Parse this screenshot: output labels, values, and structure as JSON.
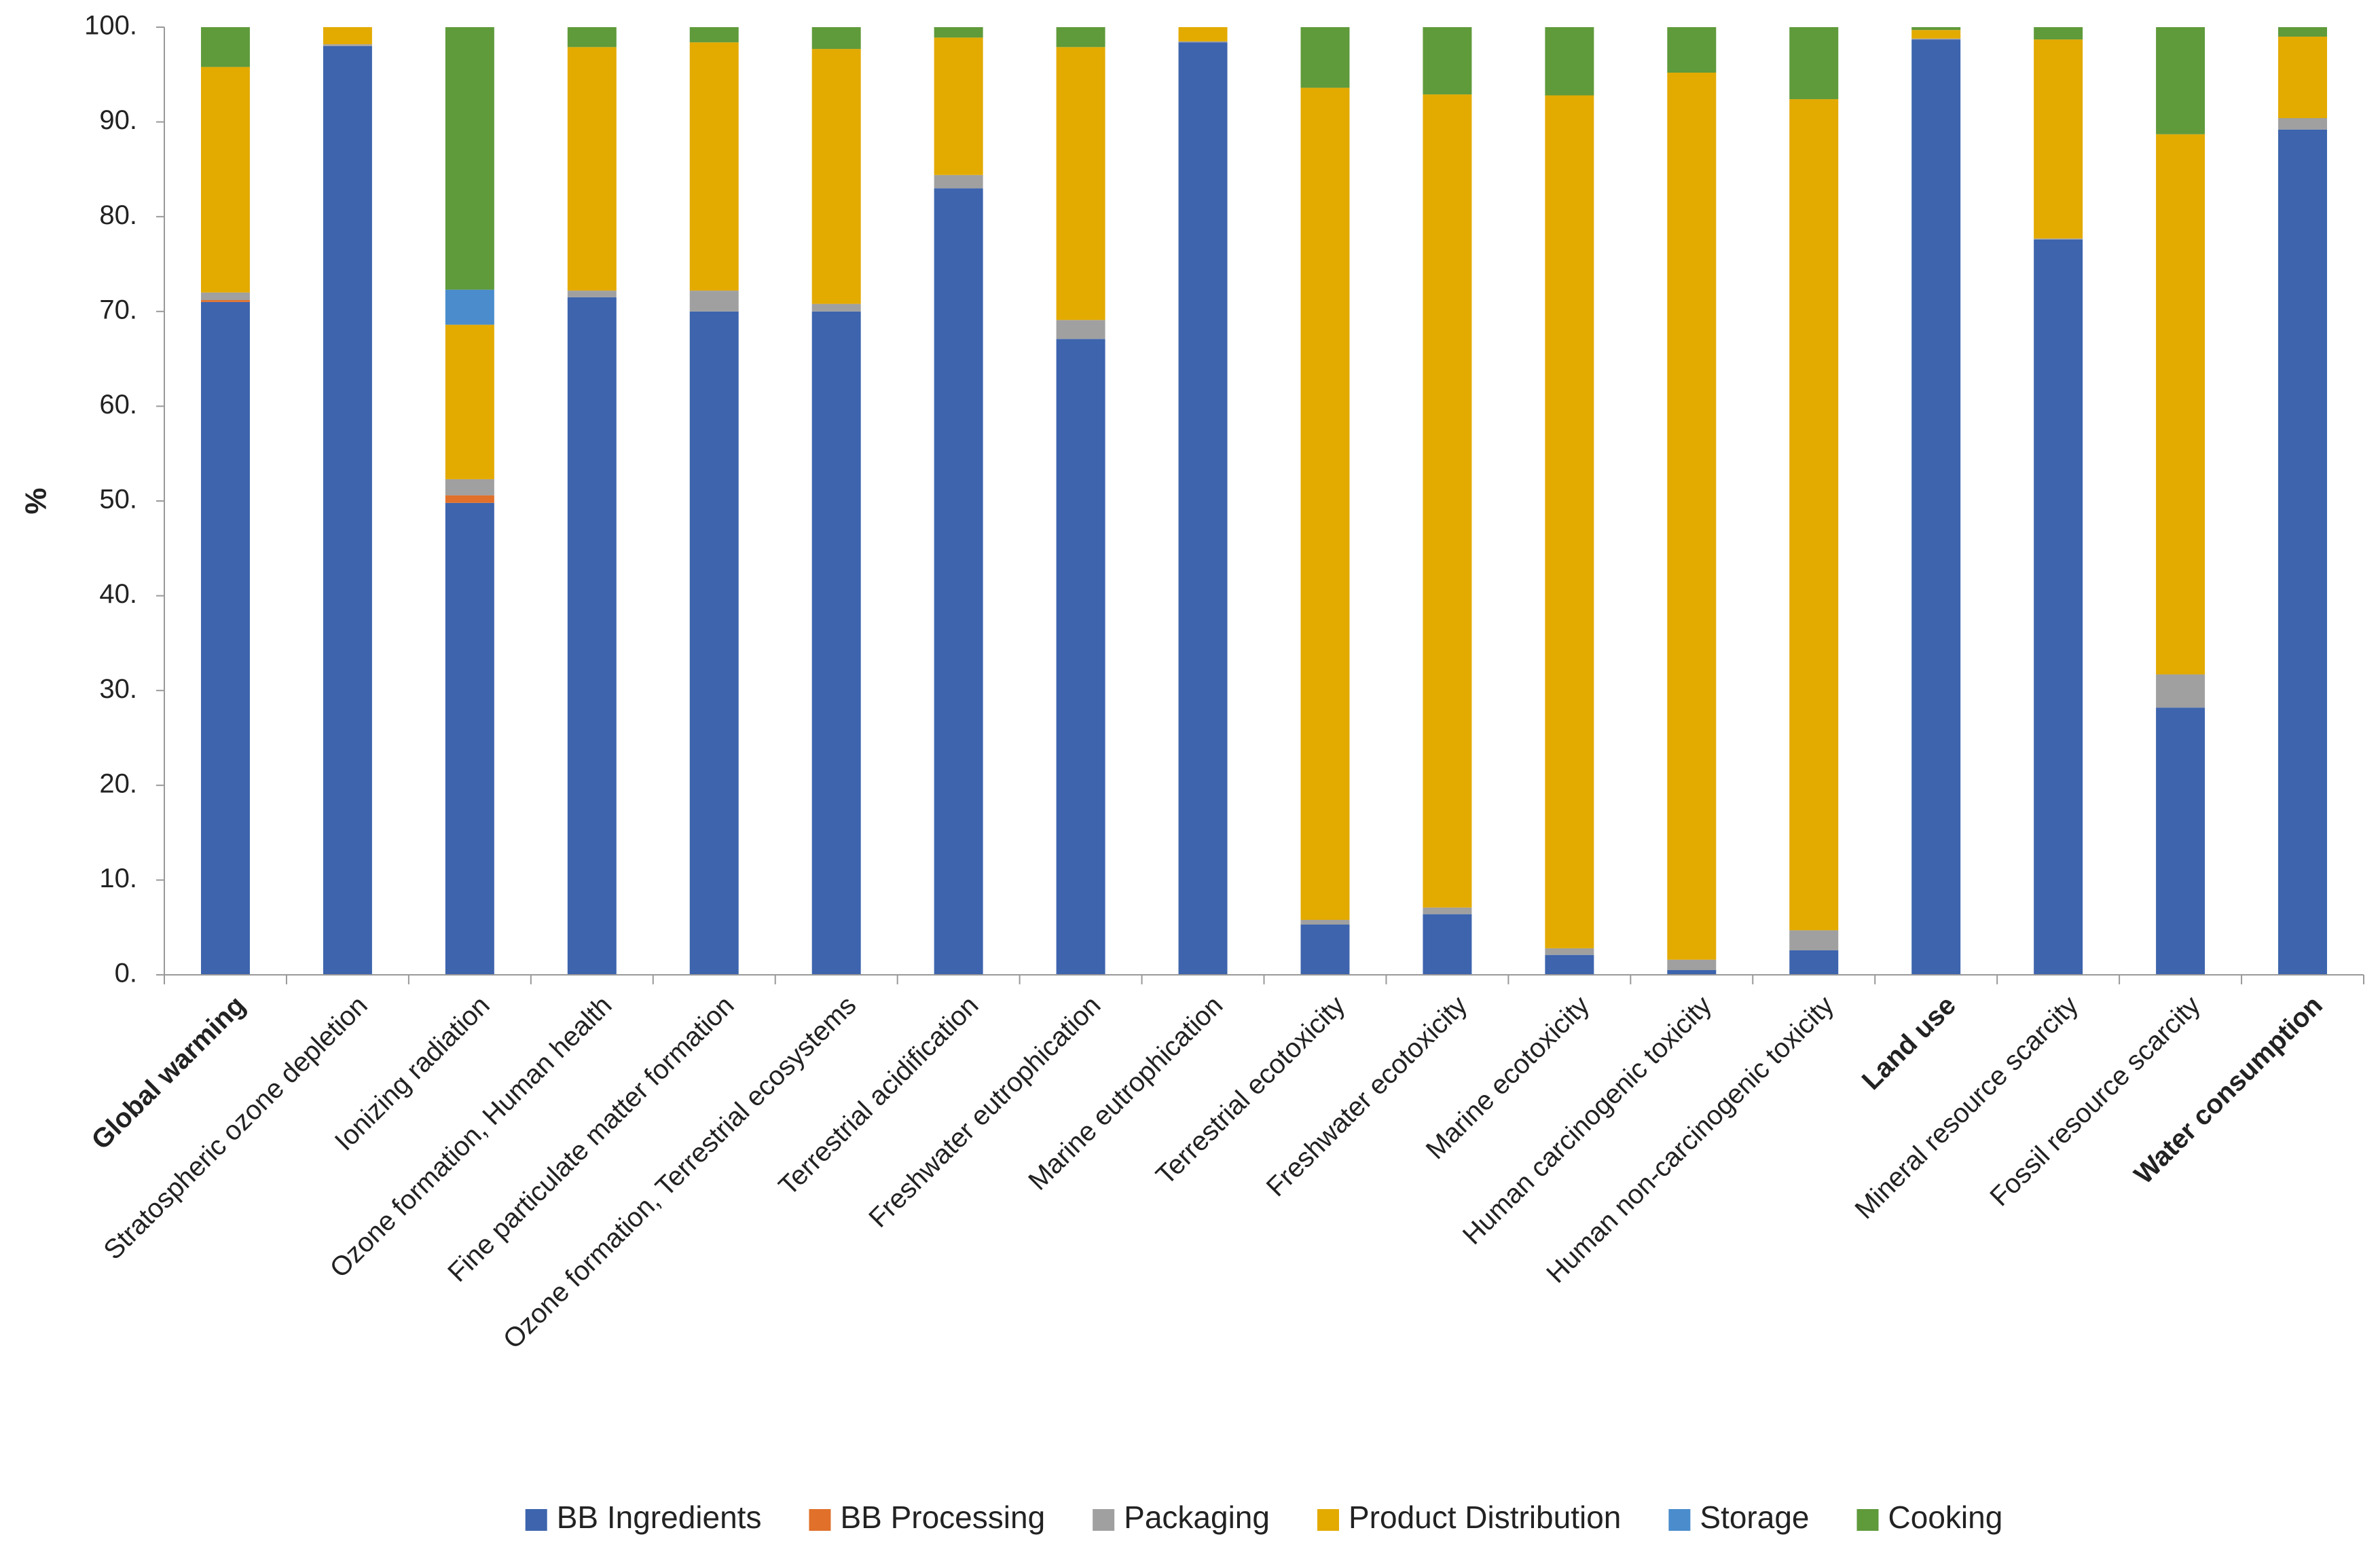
{
  "chart_data": {
    "type": "stacked_bar",
    "y_label": "%",
    "categories": [
      "Global warming",
      "Stratospheric ozone depletion",
      "Ionizing radiation",
      "Ozone formation, Human health",
      "Fine particulate matter formation",
      "Ozone formation, Terrestrial ecosystems",
      "Terrestrial acidification",
      "Freshwater eutrophication",
      "Marine eutrophication",
      "Terrestrial ecotoxicity",
      "Freshwater ecotoxicity",
      "Marine ecotoxicity",
      "Human carcinogenic toxicity",
      "Human non-carcinogenic toxicity",
      "Land use",
      "Mineral resource scarcity",
      "Fossil resource scarcity",
      "Water consumption"
    ],
    "bold_categories": [
      0,
      14,
      17
    ],
    "series": [
      {
        "name": "BB Ingredients",
        "color": "#3d64ad",
        "values": [
          71,
          98,
          49.8,
          71.5,
          70,
          70,
          83,
          67.1,
          98.4,
          5.3,
          6.4,
          2.1,
          0.5,
          2.6,
          98.7,
          77.6,
          28.2,
          89.2
        ]
      },
      {
        "name": "BB Processing",
        "color": "#e0702a",
        "values": [
          0.2,
          0,
          0.8,
          0,
          0,
          0,
          0,
          0,
          0,
          0,
          0,
          0,
          0,
          0,
          0,
          0,
          0,
          0
        ]
      },
      {
        "name": "Packaging",
        "color": "#a0a0a0",
        "values": [
          0.8,
          0.2,
          1.7,
          0.7,
          2.2,
          0.8,
          1.4,
          2,
          0.1,
          0.5,
          0.7,
          0.7,
          1.1,
          2.1,
          0.1,
          0.1,
          3.5,
          1.2
        ]
      },
      {
        "name": "Product Distribution",
        "color": "#e3aa00",
        "values": [
          23.8,
          1.8,
          16.3,
          25.7,
          26.2,
          26.9,
          14.5,
          28.8,
          1.5,
          87.8,
          85.8,
          90,
          93.6,
          87.7,
          0.9,
          21,
          57,
          8.6
        ]
      },
      {
        "name": "Storage",
        "color": "#4a8ccc",
        "values": [
          0,
          0,
          3.7,
          0,
          0,
          0,
          0,
          0,
          0,
          0,
          0,
          0,
          0,
          0,
          0,
          0,
          0,
          0
        ]
      },
      {
        "name": "Cooking",
        "color": "#5f9a3b",
        "values": [
          4.2,
          0,
          27.7,
          2.1,
          1.6,
          2.3,
          1.1,
          2.1,
          0,
          6.4,
          7.1,
          7.2,
          4.8,
          7.6,
          0.3,
          1.3,
          11.3,
          1
        ]
      }
    ],
    "ylim": [
      0,
      100
    ],
    "yticks": [
      {
        "value": 0,
        "label": "0."
      },
      {
        "value": 10,
        "label": "10."
      },
      {
        "value": 20,
        "label": "20."
      },
      {
        "value": 30,
        "label": "30."
      },
      {
        "value": 40,
        "label": "40."
      },
      {
        "value": 50,
        "label": "50."
      },
      {
        "value": 60,
        "label": "60."
      },
      {
        "value": 70,
        "label": "70."
      },
      {
        "value": 80,
        "label": "80."
      },
      {
        "value": 90,
        "label": "90."
      },
      {
        "value": 100,
        "label": "100."
      }
    ],
    "legend": "bottom"
  }
}
